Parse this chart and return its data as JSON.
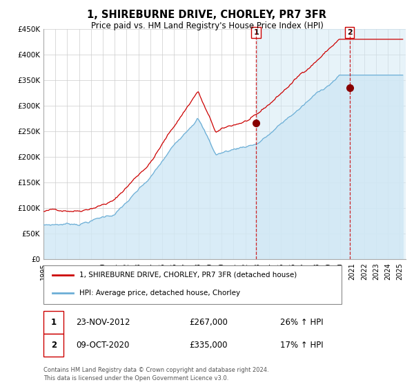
{
  "title": "1, SHIREBURNE DRIVE, CHORLEY, PR7 3FR",
  "subtitle": "Price paid vs. HM Land Registry's House Price Index (HPI)",
  "ylim": [
    0,
    450000
  ],
  "yticks": [
    0,
    50000,
    100000,
    150000,
    200000,
    250000,
    300000,
    350000,
    400000,
    450000
  ],
  "ytick_labels": [
    "£0",
    "£50K",
    "£100K",
    "£150K",
    "£200K",
    "£250K",
    "£300K",
    "£350K",
    "£400K",
    "£450K"
  ],
  "xlim_start": 1995.0,
  "xlim_end": 2025.5,
  "xticks": [
    1995,
    1996,
    1997,
    1998,
    1999,
    2000,
    2001,
    2002,
    2003,
    2004,
    2005,
    2006,
    2007,
    2008,
    2009,
    2010,
    2011,
    2012,
    2013,
    2014,
    2015,
    2016,
    2017,
    2018,
    2019,
    2020,
    2021,
    2022,
    2023,
    2024,
    2025
  ],
  "hpi_color": "#6baed6",
  "hpi_fill_color": "#d0e8f5",
  "price_color": "#cc0000",
  "marker_color": "#880000",
  "vline_color": "#cc0000",
  "sale1_x": 2012.9,
  "sale1_y": 267000,
  "sale2_x": 2020.77,
  "sale2_y": 335000,
  "legend_line1": "1, SHIREBURNE DRIVE, CHORLEY, PR7 3FR (detached house)",
  "legend_line2": "HPI: Average price, detached house, Chorley",
  "sale1_date": "23-NOV-2012",
  "sale1_price": "£267,000",
  "sale1_hpi": "26% ↑ HPI",
  "sale2_date": "09-OCT-2020",
  "sale2_price": "£335,000",
  "sale2_hpi": "17% ↑ HPI",
  "footer1": "Contains HM Land Registry data © Crown copyright and database right 2024.",
  "footer2": "This data is licensed under the Open Government Licence v3.0.",
  "background_color": "#ffffff"
}
